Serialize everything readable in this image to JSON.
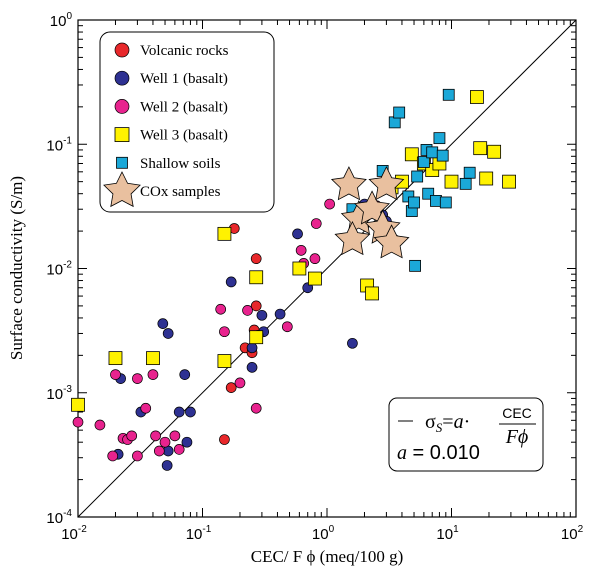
{
  "chart_data": {
    "type": "scatter",
    "xlabel": "CEC/ F ϕ (meq/100 g)",
    "ylabel": "Surface conductivity (S/m)",
    "xscale": "log",
    "yscale": "log",
    "xlim": [
      0.01,
      100
    ],
    "ylim": [
      0.0001,
      1
    ],
    "x_tick_labels": [
      "10-2",
      "10-1",
      "100",
      "101",
      "102"
    ],
    "y_tick_labels": [
      "10-4",
      "10-3",
      "10-2",
      "10-1",
      "100"
    ],
    "grid": false,
    "legend_position": "top-left",
    "colors": {
      "volcanic": "#e8282b",
      "well1": "#2e3192",
      "well2": "#e8238e",
      "well3": "#fff200",
      "shallow": "#1ba8d8",
      "cox": "#e9c09f"
    },
    "series": [
      {
        "name": "Volcanic rocks",
        "marker": "circle",
        "color": "#e8282b",
        "points": [
          [
            0.18,
            0.021
          ],
          [
            0.27,
            0.012
          ],
          [
            0.22,
            0.0023
          ],
          [
            0.17,
            0.0011
          ],
          [
            0.15,
            0.00042
          ],
          [
            0.27,
            0.005
          ],
          [
            0.26,
            0.0032
          ],
          [
            0.25,
            0.0021
          ]
        ]
      },
      {
        "name": "Well 1 (basalt)",
        "marker": "circle",
        "color": "#2e3192",
        "points": [
          [
            0.021,
            0.00032
          ],
          [
            0.022,
            0.0013
          ],
          [
            0.032,
            0.0007
          ],
          [
            0.048,
            0.0036
          ],
          [
            0.053,
            0.003
          ],
          [
            0.072,
            0.0014
          ],
          [
            0.053,
            0.00034
          ],
          [
            0.052,
            0.00026
          ],
          [
            0.065,
            0.0007
          ],
          [
            0.075,
            0.0004
          ],
          [
            0.08,
            0.0007
          ],
          [
            0.17,
            0.0078
          ],
          [
            0.15,
            0.0018
          ],
          [
            0.3,
            0.0042
          ],
          [
            0.31,
            0.0031
          ],
          [
            0.25,
            0.0023
          ],
          [
            0.25,
            0.0016
          ],
          [
            0.42,
            0.0043
          ],
          [
            0.7,
            0.007
          ],
          [
            0.58,
            0.019
          ],
          [
            2.0,
            0.033
          ],
          [
            2.8,
            0.027
          ],
          [
            3.0,
            0.024
          ],
          [
            3.2,
            0.018
          ],
          [
            3.5,
            0.017
          ],
          [
            1.6,
            0.0025
          ]
        ]
      },
      {
        "name": "Well 2 (basalt)",
        "marker": "circle",
        "color": "#e8238e",
        "points": [
          [
            0.01,
            0.00058
          ],
          [
            0.015,
            0.00055
          ],
          [
            0.019,
            0.00031
          ],
          [
            0.02,
            0.0014
          ],
          [
            0.023,
            0.00043
          ],
          [
            0.025,
            0.00042
          ],
          [
            0.027,
            0.00045
          ],
          [
            0.03,
            0.00031
          ],
          [
            0.03,
            0.0013
          ],
          [
            0.035,
            0.00075
          ],
          [
            0.04,
            0.0014
          ],
          [
            0.042,
            0.00045
          ],
          [
            0.045,
            0.00034
          ],
          [
            0.05,
            0.0004
          ],
          [
            0.06,
            0.00045
          ],
          [
            0.065,
            0.00035
          ],
          [
            0.14,
            0.0047
          ],
          [
            0.15,
            0.0031
          ],
          [
            0.2,
            0.0012
          ],
          [
            0.23,
            0.0046
          ],
          [
            0.28,
            0.0029
          ],
          [
            0.27,
            0.00075
          ],
          [
            0.48,
            0.0034
          ],
          [
            0.62,
            0.014
          ],
          [
            0.65,
            0.011
          ],
          [
            0.8,
            0.012
          ],
          [
            0.82,
            0.023
          ],
          [
            1.05,
            0.033
          ],
          [
            2.5,
            0.032
          ],
          [
            2.8,
            0.019
          ]
        ]
      },
      {
        "name": "Well 3 (basalt)",
        "marker": "square",
        "color": "#fff200",
        "points": [
          [
            0.01,
            0.0008
          ],
          [
            0.02,
            0.0019
          ],
          [
            0.04,
            0.0019
          ],
          [
            0.15,
            0.019
          ],
          [
            0.15,
            0.0018
          ],
          [
            0.27,
            0.0085
          ],
          [
            0.27,
            0.0028
          ],
          [
            0.6,
            0.01
          ],
          [
            0.8,
            0.0083
          ],
          [
            2.1,
            0.0073
          ],
          [
            2.3,
            0.0063
          ],
          [
            3.3,
            0.045
          ],
          [
            4.0,
            0.05
          ],
          [
            4.8,
            0.083
          ],
          [
            6.0,
            0.07
          ],
          [
            7.0,
            0.062
          ],
          [
            8.0,
            0.07
          ],
          [
            10.0,
            0.05
          ],
          [
            16.0,
            0.24
          ],
          [
            17.0,
            0.093
          ],
          [
            19.0,
            0.053
          ],
          [
            22.0,
            0.087
          ],
          [
            29.0,
            0.05
          ]
        ]
      },
      {
        "name": "Shallow soils",
        "marker": "square",
        "color": "#1ba8d8",
        "points": [
          [
            1.6,
            0.03
          ],
          [
            2.8,
            0.061
          ],
          [
            3.5,
            0.15
          ],
          [
            3.8,
            0.18
          ],
          [
            4.5,
            0.038
          ],
          [
            4.8,
            0.029
          ],
          [
            5.0,
            0.034
          ],
          [
            5.1,
            0.0105
          ],
          [
            5.3,
            0.055
          ],
          [
            6.0,
            0.072
          ],
          [
            6.3,
            0.09
          ],
          [
            6.5,
            0.04
          ],
          [
            7.0,
            0.086
          ],
          [
            7.5,
            0.035
          ],
          [
            8.0,
            0.112
          ],
          [
            8.5,
            0.081
          ],
          [
            9.5,
            0.25
          ],
          [
            9.0,
            0.034
          ],
          [
            13.0,
            0.048
          ],
          [
            14.0,
            0.059
          ]
        ]
      },
      {
        "name": "COx samples",
        "marker": "star",
        "color": "#e9c09f",
        "points": [
          [
            1.5,
            0.047
          ],
          [
            1.8,
            0.025
          ],
          [
            1.6,
            0.017
          ],
          [
            2.3,
            0.03
          ],
          [
            2.8,
            0.021
          ],
          [
            3.0,
            0.047
          ],
          [
            3.3,
            0.016
          ]
        ]
      }
    ],
    "fit_line": {
      "label": "σS=a·CEC/Fϕ",
      "a_text": "a = 0.010",
      "a": 0.01,
      "color": "#000000"
    }
  },
  "fit_box": {
    "sigma": "σ",
    "sub": "S",
    "eq": "=",
    "a_coef": "a",
    "dot": "·",
    "numer": "CEC",
    "denom": "Fϕ",
    "a_var": "a",
    "a_value": " = 0.010"
  }
}
